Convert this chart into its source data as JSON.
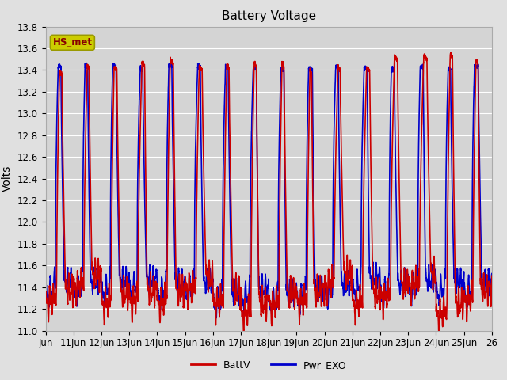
{
  "title": "Battery Voltage",
  "ylabel": "Volts",
  "ylim": [
    11.0,
    13.8
  ],
  "yticks": [
    11.0,
    11.2,
    11.4,
    11.6,
    11.8,
    12.0,
    12.2,
    12.4,
    12.6,
    12.8,
    13.0,
    13.2,
    13.4,
    13.6,
    13.8
  ],
  "xlim": [
    10,
    26
  ],
  "xtick_positions": [
    10,
    11,
    12,
    13,
    14,
    15,
    16,
    17,
    18,
    19,
    20,
    21,
    22,
    23,
    24,
    25,
    26
  ],
  "xtick_labels": [
    "Jun",
    "11Jun",
    "12Jun",
    "13Jun",
    "14Jun",
    "15Jun",
    "16Jun",
    "17Jun",
    "18Jun",
    "19Jun",
    "20Jun",
    "21Jun",
    "22Jun",
    "23Jun",
    "24Jun",
    "25Jun",
    "26"
  ],
  "legend_labels": [
    "BattV",
    "Pwr_EXO"
  ],
  "legend_colors": [
    "#cc0000",
    "#0000cc"
  ],
  "annotation_text": "HS_met",
  "annotation_color": "#880000",
  "annotation_bg": "#cccc00",
  "annotation_border": "#999900",
  "line_color_battv": "#cc0000",
  "line_color_pwr": "#0000cc",
  "fig_bg_color": "#e0e0e0",
  "plot_bg_color": "#d4d4d4",
  "grid_color": "#ffffff",
  "title_fontsize": 11,
  "label_fontsize": 10,
  "tick_fontsize": 8.5,
  "legend_fontsize": 9,
  "linewidth": 1.2
}
